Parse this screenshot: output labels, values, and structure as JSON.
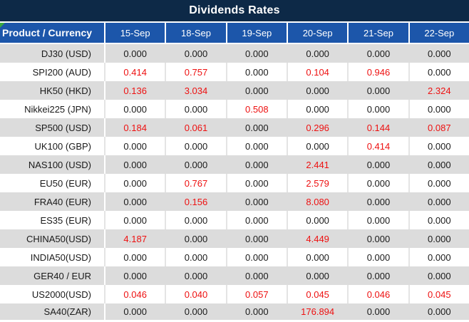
{
  "title": "Dividends Rates",
  "colors": {
    "title_bar_bg": "#0d2947",
    "header_bg": "#1c56aa",
    "row_alt_bg": "#dcdcdc",
    "row_bg": "#ffffff",
    "value_red": "#ee1111",
    "value_black": "#1a1a1a",
    "corner_triangle_green": "#3aa83f"
  },
  "table": {
    "product_header": "Product / Currency",
    "date_headers": [
      "15-Sep",
      "18-Sep",
      "19-Sep",
      "20-Sep",
      "21-Sep",
      "22-Sep"
    ],
    "rows": [
      {
        "product": "DJ30 (USD)",
        "values": [
          "0.000",
          "0.000",
          "0.000",
          "0.000",
          "0.000",
          "0.000"
        ],
        "red": [
          false,
          false,
          false,
          false,
          false,
          false
        ]
      },
      {
        "product": "SPI200 (AUD)",
        "values": [
          "0.414",
          "0.757",
          "0.000",
          "0.104",
          "0.946",
          "0.000"
        ],
        "red": [
          true,
          true,
          false,
          true,
          true,
          false
        ]
      },
      {
        "product": "HK50 (HKD)",
        "values": [
          "0.136",
          "3.034",
          "0.000",
          "0.000",
          "0.000",
          "2.324"
        ],
        "red": [
          true,
          true,
          false,
          false,
          false,
          true
        ]
      },
      {
        "product": "Nikkei225 (JPN)",
        "values": [
          "0.000",
          "0.000",
          "0.508",
          "0.000",
          "0.000",
          "0.000"
        ],
        "red": [
          false,
          false,
          true,
          false,
          false,
          false
        ]
      },
      {
        "product": "SP500 (USD)",
        "values": [
          "0.184",
          "0.061",
          "0.000",
          "0.296",
          "0.144",
          "0.087"
        ],
        "red": [
          true,
          true,
          false,
          true,
          true,
          true
        ]
      },
      {
        "product": "UK100 (GBP)",
        "values": [
          "0.000",
          "0.000",
          "0.000",
          "0.000",
          "0.414",
          "0.000"
        ],
        "red": [
          false,
          false,
          false,
          false,
          true,
          false
        ]
      },
      {
        "product": "NAS100 (USD)",
        "values": [
          "0.000",
          "0.000",
          "0.000",
          "2.441",
          "0.000",
          "0.000"
        ],
        "red": [
          false,
          false,
          false,
          true,
          false,
          false
        ]
      },
      {
        "product": "EU50 (EUR)",
        "values": [
          "0.000",
          "0.767",
          "0.000",
          "2.579",
          "0.000",
          "0.000"
        ],
        "red": [
          false,
          true,
          false,
          true,
          false,
          false
        ]
      },
      {
        "product": "FRA40 (EUR)",
        "values": [
          "0.000",
          "0.156",
          "0.000",
          "8.080",
          "0.000",
          "0.000"
        ],
        "red": [
          false,
          true,
          false,
          true,
          false,
          false
        ]
      },
      {
        "product": "ES35 (EUR)",
        "values": [
          "0.000",
          "0.000",
          "0.000",
          "0.000",
          "0.000",
          "0.000"
        ],
        "red": [
          false,
          false,
          false,
          false,
          false,
          false
        ]
      },
      {
        "product": "CHINA50(USD)",
        "values": [
          "4.187",
          "0.000",
          "0.000",
          "4.449",
          "0.000",
          "0.000"
        ],
        "red": [
          true,
          false,
          false,
          true,
          false,
          false
        ]
      },
      {
        "product": "INDIA50(USD)",
        "values": [
          "0.000",
          "0.000",
          "0.000",
          "0.000",
          "0.000",
          "0.000"
        ],
        "red": [
          false,
          false,
          false,
          false,
          false,
          false
        ]
      },
      {
        "product": "GER40 / EUR",
        "values": [
          "0.000",
          "0.000",
          "0.000",
          "0.000",
          "0.000",
          "0.000"
        ],
        "red": [
          false,
          false,
          false,
          false,
          false,
          false
        ]
      },
      {
        "product": "US2000(USD)",
        "values": [
          "0.046",
          "0.040",
          "0.057",
          "0.045",
          "0.046",
          "0.045"
        ],
        "red": [
          true,
          true,
          true,
          true,
          true,
          true
        ]
      },
      {
        "product": "SA40(ZAR)",
        "values": [
          "0.000",
          "0.000",
          "0.000",
          "176.894",
          "0.000",
          "0.000"
        ],
        "red": [
          false,
          false,
          false,
          true,
          false,
          false
        ]
      }
    ]
  },
  "chart_data": {
    "type": "table",
    "title": "Dividends Rates",
    "columns": [
      "Product / Currency",
      "15-Sep",
      "18-Sep",
      "19-Sep",
      "20-Sep",
      "21-Sep",
      "22-Sep"
    ],
    "rows": [
      [
        "DJ30 (USD)",
        0.0,
        0.0,
        0.0,
        0.0,
        0.0,
        0.0
      ],
      [
        "SPI200 (AUD)",
        0.414,
        0.757,
        0.0,
        0.104,
        0.946,
        0.0
      ],
      [
        "HK50 (HKD)",
        0.136,
        3.034,
        0.0,
        0.0,
        0.0,
        2.324
      ],
      [
        "Nikkei225 (JPN)",
        0.0,
        0.0,
        0.508,
        0.0,
        0.0,
        0.0
      ],
      [
        "SP500 (USD)",
        0.184,
        0.061,
        0.0,
        0.296,
        0.144,
        0.087
      ],
      [
        "UK100 (GBP)",
        0.0,
        0.0,
        0.0,
        0.0,
        0.414,
        0.0
      ],
      [
        "NAS100 (USD)",
        0.0,
        0.0,
        0.0,
        2.441,
        0.0,
        0.0
      ],
      [
        "EU50 (EUR)",
        0.0,
        0.767,
        0.0,
        2.579,
        0.0,
        0.0
      ],
      [
        "FRA40 (EUR)",
        0.0,
        0.156,
        0.0,
        8.08,
        0.0,
        0.0
      ],
      [
        "ES35 (EUR)",
        0.0,
        0.0,
        0.0,
        0.0,
        0.0,
        0.0
      ],
      [
        "CHINA50(USD)",
        4.187,
        0.0,
        0.0,
        4.449,
        0.0,
        0.0
      ],
      [
        "INDIA50(USD)",
        0.0,
        0.0,
        0.0,
        0.0,
        0.0,
        0.0
      ],
      [
        "GER40 / EUR",
        0.0,
        0.0,
        0.0,
        0.0,
        0.0,
        0.0
      ],
      [
        "US2000(USD)",
        0.046,
        0.04,
        0.057,
        0.045,
        0.046,
        0.045
      ],
      [
        "SA40(ZAR)",
        0.0,
        0.0,
        0.0,
        176.894,
        0.0,
        0.0
      ]
    ],
    "notes": "Non-zero dividend rates are rendered in red; zero values in black. Rows alternate gray/white backgrounds."
  }
}
